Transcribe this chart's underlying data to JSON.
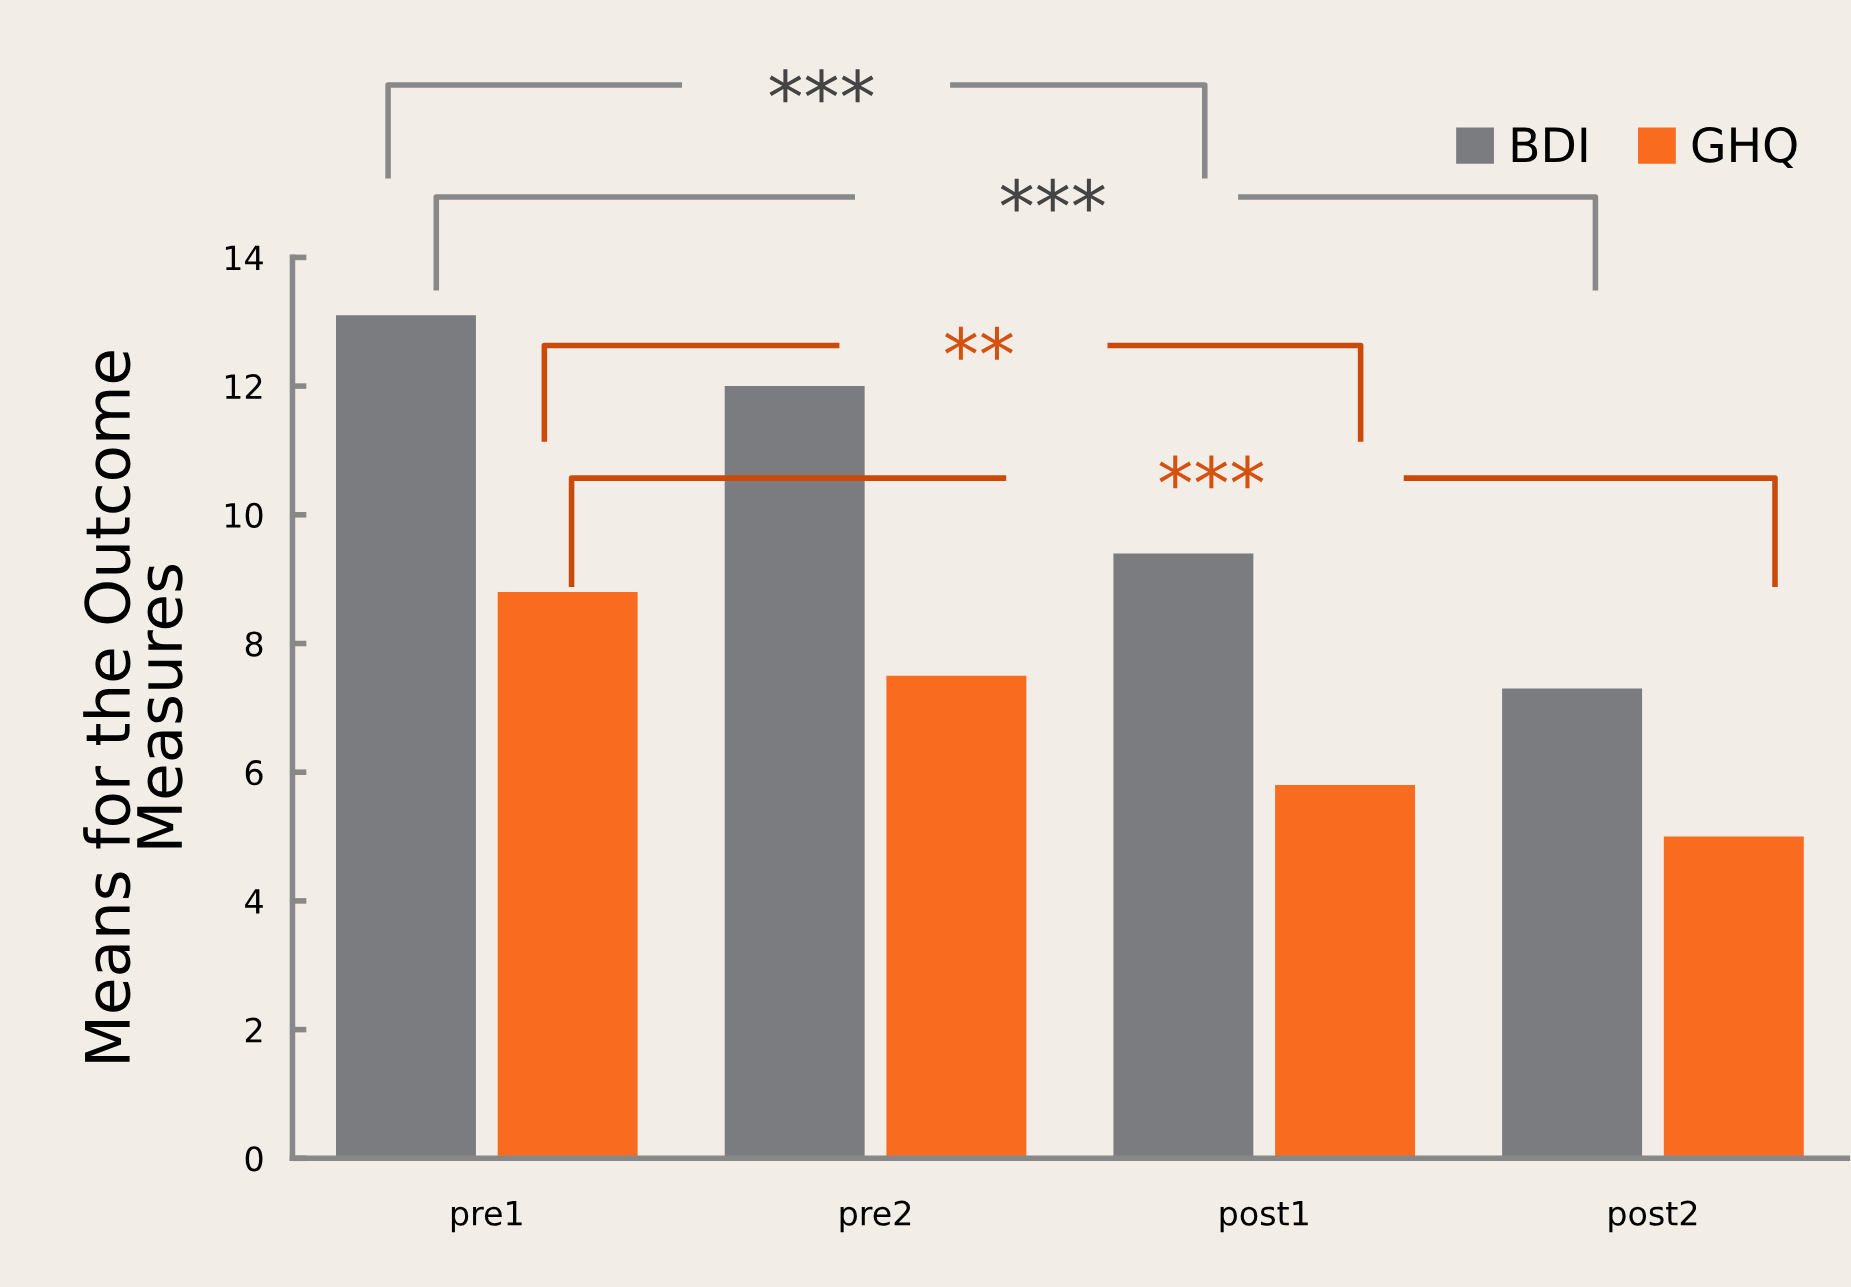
{
  "chart_data": {
    "type": "bar",
    "ylabel": "Means for the Outcome\nMeasures",
    "categories": [
      "pre1",
      "pre2",
      "post1",
      "post2"
    ],
    "series": [
      {
        "name": "BDI",
        "color": "#7b7c80",
        "values": [
          13.1,
          12.0,
          9.4,
          7.3
        ]
      },
      {
        "name": "GHQ",
        "color": "#f96b1f",
        "values": [
          8.8,
          7.5,
          5.8,
          5.0
        ]
      }
    ],
    "ylim": [
      0,
      14
    ],
    "yticks": [
      0,
      2,
      4,
      6,
      8,
      10,
      12,
      14
    ],
    "grid": false,
    "legend": "top right",
    "annotations": [
      "***",
      "***",
      "**",
      "***"
    ]
  }
}
